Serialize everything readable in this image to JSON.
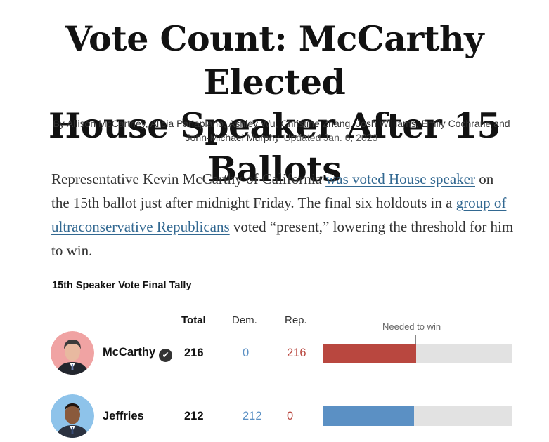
{
  "headline": {
    "line1": "Vote Count: McCarthy Elected",
    "line2": "House Speaker After 15 Ballots"
  },
  "byline": {
    "prefix": "By Allison McCartney, ",
    "authors_linked": [
      "Alicia Parlapiano",
      "Ashley Wu"
    ],
    "plain": "Christine Zhang",
    "authors_linked2": [
      "Josh Williams",
      "Emily Cochrane"
    ],
    "and": " and",
    "last": "John-Michael Murphy",
    "updated": "Updated Jan. 6, 2023"
  },
  "summary": {
    "part1": "Representative Kevin McCarthy of California ",
    "link1": "was voted House speaker",
    "part2": " on the 15th ballot just after midnight Friday. The final six holdouts in a ",
    "link2": "group of ultraconservative Republicans",
    "part3": " voted “present,” lowering the threshold for him to win."
  },
  "tally": {
    "title": "15th Speaker Vote Final Tally",
    "columns": {
      "total": "Total",
      "dem": "Dem.",
      "rep": "Rep."
    },
    "needed_label": "Needed to win",
    "needed_fraction": 0.492,
    "rows": [
      {
        "name": "McCarthy",
        "winner": true,
        "total": "216",
        "dem": "0",
        "rep": "216",
        "bar_fraction": 0.493,
        "bar_color": "#b9473f",
        "avatar_bg": "#f0a3a3"
      },
      {
        "name": "Jeffries",
        "winner": false,
        "total": "212",
        "dem": "212",
        "rep": "0",
        "bar_fraction": 0.484,
        "bar_color": "#5b90c4",
        "avatar_bg": "#8ec3ea"
      }
    ]
  },
  "icons": {
    "winner": "checkmark-icon"
  }
}
